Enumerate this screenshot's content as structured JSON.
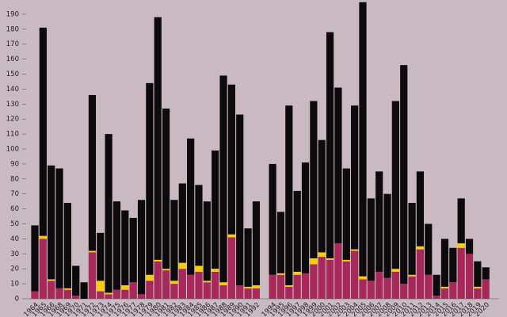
{
  "chart_data": {
    "type": "stacked-bar",
    "categories": [
      "1964",
      "1965",
      "1966",
      "1968",
      "1969",
      "1970",
      "1971",
      "1972",
      "1973",
      "1974",
      "1975",
      "1976",
      "1977",
      "1978",
      "1979",
      "1980",
      "1981",
      "1982",
      "1983",
      "1984",
      "1985",
      "1986",
      "1987",
      "1988",
      "1989",
      "1990",
      "1991",
      "1992",
      null,
      "1994",
      "1995",
      "1996",
      "1997",
      "1998",
      "1999",
      "2000",
      "2001",
      "2002",
      "2003",
      "2004",
      "2005",
      "2006",
      "2007",
      "2008",
      "2009",
      "2010",
      "2011",
      "2012",
      "2013",
      "2014",
      "2015",
      "2016",
      "2017",
      "2018",
      "2019",
      "2020"
    ],
    "series": [
      {
        "color": "#a8285a",
        "values": [
          5,
          40,
          12,
          7,
          6,
          2,
          0,
          31,
          5,
          3,
          6,
          6,
          11,
          3,
          12,
          25,
          19,
          10,
          20,
          16,
          18,
          11,
          18,
          9,
          41,
          9,
          7,
          7,
          null,
          16,
          16,
          8,
          16,
          17,
          23,
          28,
          26,
          37,
          25,
          32,
          13,
          12,
          18,
          14,
          18,
          10,
          15,
          33,
          16,
          2,
          7,
          11,
          34,
          30,
          7,
          13
        ]
      },
      {
        "color": "#f5d000",
        "values": [
          0,
          2,
          1,
          0,
          1,
          0,
          0,
          1,
          7,
          1,
          0,
          3,
          0,
          0,
          4,
          1,
          1,
          2,
          4,
          0,
          4,
          1,
          2,
          2,
          2,
          0,
          1,
          2,
          null,
          0,
          1,
          1,
          2,
          0,
          4,
          3,
          1,
          0,
          1,
          1,
          2,
          0,
          0,
          0,
          2,
          0,
          1,
          2,
          0,
          0,
          1,
          0,
          3,
          0,
          1,
          0
        ]
      },
      {
        "color": "#0d0a0b",
        "values": [
          44,
          139,
          76,
          80,
          57,
          20,
          11,
          104,
          32,
          106,
          59,
          50,
          43,
          63,
          128,
          162,
          107,
          54,
          53,
          91,
          54,
          53,
          79,
          138,
          100,
          114,
          39,
          56,
          null,
          74,
          41,
          120,
          54,
          74,
          105,
          75,
          151,
          104,
          61,
          96,
          183,
          55,
          67,
          56,
          112,
          146,
          48,
          50,
          34,
          14,
          32,
          23,
          30,
          10,
          17,
          8
        ]
      }
    ],
    "ylim": [
      0,
      200
    ],
    "yticks": [
      0,
      10,
      20,
      30,
      40,
      50,
      60,
      70,
      80,
      90,
      100,
      110,
      120,
      130,
      140,
      150,
      160,
      170,
      180,
      190
    ]
  }
}
